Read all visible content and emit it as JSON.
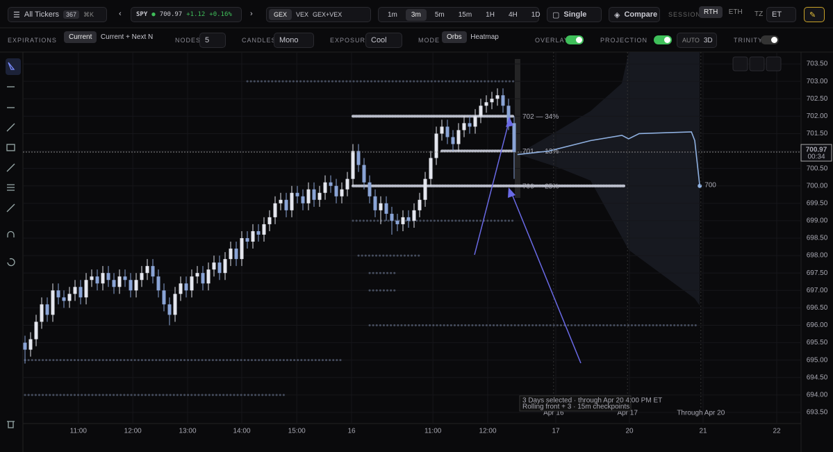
{
  "toolbar": {
    "tickers": "All Tickers",
    "ticker_count": "367",
    "shortcut": "⌘K",
    "symbol": "SPY",
    "price": "700.97",
    "change": "+1.12",
    "change_pct": "+0.16%",
    "modes": [
      "GEX",
      "VEX",
      "GEX+VEX"
    ],
    "intervals": [
      "1m",
      "3m",
      "5m",
      "15m",
      "1H",
      "4H",
      "1D"
    ],
    "layout": "Single",
    "compare": "Compare",
    "session_label": "SESSION",
    "sessions": [
      "RTH",
      "ETH"
    ],
    "tz_label": "TZ",
    "tz": "ET"
  },
  "options": {
    "expirations_label": "EXPIRATIONS",
    "expirations": [
      "Current",
      "Current + Next N"
    ],
    "nodes_label": "NODES",
    "nodes": "5",
    "candles_label": "CANDLES",
    "candles": "Mono",
    "exposure_label": "EXPOSURE",
    "exposure": "Cool",
    "mode_label": "MODE",
    "modes": [
      "Orbs",
      "Heatmap"
    ],
    "overlay_label": "OVERLAY",
    "projection_label": "PROJECTION",
    "auto_label": "AUTO",
    "auto": "3D",
    "trinity_label": "TRINITY"
  },
  "chart_data": {
    "type": "candlestick",
    "up_color": "#e4e6ee",
    "down_color": "#8aa4d6",
    "grid": true,
    "xlim": [
      -0.375,
      139.625
    ],
    "ylim": [
      693.18,
      703.84
    ],
    "xticks": [
      {
        "value": 9.6,
        "label": "11:00"
      },
      {
        "value": 19.4,
        "label": "12:00"
      },
      {
        "value": 29.25,
        "label": "13:00"
      },
      {
        "value": 39,
        "label": "14:00"
      },
      {
        "value": 48.9,
        "label": "15:00"
      },
      {
        "value": 58.75,
        "label": "16"
      },
      {
        "value": 73.4,
        "label": "11:00"
      },
      {
        "value": 83.25,
        "label": "12:00"
      },
      {
        "value": 95.5,
        "label": "17"
      },
      {
        "value": 108.75,
        "label": "20"
      },
      {
        "value": 122,
        "label": "21"
      },
      {
        "value": 135.25,
        "label": "22"
      }
    ],
    "yticks": [
      {
        "value": 693.5,
        "label": "693.50"
      },
      {
        "value": 694,
        "label": "694.00"
      },
      {
        "value": 694.5,
        "label": "694.50"
      },
      {
        "value": 695,
        "label": "695.00"
      },
      {
        "value": 695.5,
        "label": "695.50"
      },
      {
        "value": 696,
        "label": "696.00"
      },
      {
        "value": 696.5,
        "label": "696.50"
      },
      {
        "value": 697,
        "label": "697.00"
      },
      {
        "value": 697.5,
        "label": "697.50"
      },
      {
        "value": 698,
        "label": "698.00"
      },
      {
        "value": 698.5,
        "label": "698.50"
      },
      {
        "value": 699,
        "label": "699.00"
      },
      {
        "value": 699.5,
        "label": "699.50"
      },
      {
        "value": 700,
        "label": "700.00"
      },
      {
        "value": 700.5,
        "label": "700.50"
      },
      {
        "value": 701,
        "label": "701.00"
      },
      {
        "value": 701.5,
        "label": "701.50"
      },
      {
        "value": 702,
        "label": "702.00"
      },
      {
        "value": 702.5,
        "label": "702.50"
      },
      {
        "value": 703,
        "label": "703.00"
      },
      {
        "value": 703.5,
        "label": "703.50"
      }
    ],
    "current_price": {
      "value": 700.97,
      "label": "700.97"
    },
    "countdown": "00:34",
    "candles": [
      [
        695.5,
        695.7,
        694.9,
        695.3
      ],
      [
        695.3,
        695.8,
        695.1,
        695.6
      ],
      [
        695.6,
        696.3,
        695.4,
        696.1
      ],
      [
        696.1,
        696.8,
        695.9,
        696.6
      ],
      [
        696.6,
        696.8,
        696.1,
        696.3
      ],
      [
        696.3,
        697.2,
        696.1,
        697.0
      ],
      [
        697.0,
        697.2,
        696.6,
        696.8
      ],
      [
        696.8,
        697.0,
        696.5,
        696.7
      ],
      [
        696.7,
        697.1,
        696.5,
        696.9
      ],
      [
        696.9,
        697.3,
        696.7,
        697.1
      ],
      [
        697.1,
        697.3,
        696.6,
        696.8
      ],
      [
        696.8,
        697.5,
        696.6,
        697.3
      ],
      [
        697.3,
        697.6,
        697.1,
        697.4
      ],
      [
        697.4,
        697.6,
        697.0,
        697.2
      ],
      [
        697.2,
        697.7,
        697.0,
        697.5
      ],
      [
        697.5,
        697.7,
        697.1,
        697.3
      ],
      [
        697.3,
        697.5,
        696.9,
        697.1
      ],
      [
        697.1,
        697.6,
        696.9,
        697.4
      ],
      [
        697.4,
        697.6,
        697.1,
        697.3
      ],
      [
        697.3,
        697.5,
        696.8,
        697.0
      ],
      [
        697.0,
        697.5,
        696.8,
        697.3
      ],
      [
        697.3,
        697.7,
        697.1,
        697.5
      ],
      [
        697.5,
        697.9,
        697.3,
        697.7
      ],
      [
        697.7,
        697.9,
        697.2,
        697.4
      ],
      [
        697.4,
        697.6,
        696.8,
        697.0
      ],
      [
        697.0,
        697.2,
        696.4,
        696.6
      ],
      [
        696.6,
        696.8,
        696.0,
        696.3
      ],
      [
        696.3,
        697.1,
        696.1,
        696.9
      ],
      [
        696.9,
        697.4,
        696.7,
        697.2
      ],
      [
        697.2,
        697.4,
        696.8,
        697.0
      ],
      [
        697.0,
        697.6,
        696.8,
        697.4
      ],
      [
        697.4,
        697.7,
        697.2,
        697.5
      ],
      [
        697.5,
        697.7,
        697.0,
        697.2
      ],
      [
        697.2,
        697.8,
        697.0,
        697.6
      ],
      [
        697.6,
        698.0,
        697.4,
        697.8
      ],
      [
        697.8,
        698.0,
        697.3,
        697.5
      ],
      [
        697.5,
        698.1,
        697.3,
        697.9
      ],
      [
        697.9,
        698.4,
        697.7,
        698.2
      ],
      [
        698.2,
        698.4,
        697.7,
        697.9
      ],
      [
        697.9,
        698.7,
        697.7,
        698.5
      ],
      [
        698.5,
        698.7,
        698.2,
        698.4
      ],
      [
        698.4,
        698.9,
        698.2,
        698.7
      ],
      [
        698.7,
        698.9,
        698.4,
        698.6
      ],
      [
        698.6,
        699.1,
        698.4,
        698.9
      ],
      [
        698.9,
        699.3,
        698.7,
        699.1
      ],
      [
        699.1,
        699.7,
        698.9,
        699.5
      ],
      [
        699.5,
        699.8,
        699.3,
        699.6
      ],
      [
        699.6,
        699.8,
        699.1,
        699.3
      ],
      [
        699.3,
        700.0,
        699.1,
        699.8
      ],
      [
        699.8,
        700.0,
        699.5,
        699.7
      ],
      [
        699.7,
        699.9,
        699.3,
        699.5
      ],
      [
        699.5,
        700.1,
        699.3,
        699.9
      ],
      [
        699.9,
        700.1,
        699.4,
        699.6
      ],
      [
        699.6,
        700.0,
        699.4,
        699.8
      ],
      [
        699.8,
        700.3,
        699.6,
        700.1
      ],
      [
        700.1,
        700.3,
        699.8,
        700.0
      ],
      [
        700.0,
        700.2,
        699.5,
        699.7
      ],
      [
        699.7,
        700.1,
        699.5,
        699.9
      ],
      [
        699.9,
        700.4,
        699.7,
        700.2
      ],
      [
        700.2,
        701.2,
        700.0,
        701.0
      ],
      [
        701.0,
        701.2,
        700.4,
        700.6
      ],
      [
        700.6,
        700.8,
        699.9,
        700.1
      ],
      [
        700.1,
        700.3,
        699.5,
        699.7
      ],
      [
        699.7,
        699.9,
        699.1,
        699.3
      ],
      [
        699.3,
        699.7,
        698.9,
        699.5
      ],
      [
        699.5,
        699.7,
        699.0,
        699.2
      ],
      [
        699.2,
        699.4,
        698.6,
        699.0
      ],
      [
        699.0,
        699.2,
        698.7,
        698.9
      ],
      [
        698.9,
        699.3,
        698.7,
        699.1
      ],
      [
        699.1,
        699.3,
        698.8,
        699.0
      ],
      [
        699.0,
        699.5,
        698.8,
        699.3
      ],
      [
        699.3,
        699.8,
        699.1,
        699.6
      ],
      [
        699.6,
        700.4,
        699.4,
        700.2
      ],
      [
        700.2,
        701.0,
        700.0,
        700.8
      ],
      [
        700.8,
        701.7,
        700.6,
        701.5
      ],
      [
        701.5,
        701.9,
        701.3,
        701.7
      ],
      [
        701.7,
        701.9,
        701.2,
        701.4
      ],
      [
        701.4,
        701.6,
        701.0,
        701.2
      ],
      [
        701.2,
        701.8,
        701.0,
        701.6
      ],
      [
        701.6,
        702.0,
        701.4,
        701.8
      ],
      [
        701.8,
        702.0,
        701.5,
        701.7
      ],
      [
        701.7,
        702.2,
        701.5,
        702.0
      ],
      [
        702.0,
        702.5,
        701.8,
        702.3
      ],
      [
        702.3,
        702.6,
        702.1,
        702.4
      ],
      [
        702.4,
        702.7,
        702.2,
        702.5
      ],
      [
        702.5,
        702.8,
        702.3,
        702.6
      ],
      [
        702.6,
        702.8,
        702.1,
        702.3
      ],
      [
        702.3,
        702.5,
        701.6,
        701.8
      ],
      [
        701.8,
        702.0,
        700.2,
        700.97
      ]
    ],
    "orbs": [
      {
        "level": 703,
        "start": 40,
        "end": 88
      },
      {
        "level": 702,
        "start": 59,
        "end": 88
      },
      {
        "level": 701,
        "start": 75,
        "end": 88
      },
      {
        "level": 700,
        "start": 59,
        "end": 108
      },
      {
        "level": 699,
        "start": 59,
        "end": 88
      },
      {
        "level": 698,
        "start": 60,
        "end": 71
      },
      {
        "level": 697.5,
        "start": 62,
        "end": 67
      },
      {
        "level": 697,
        "start": 62,
        "end": 67
      },
      {
        "level": 696,
        "start": 62,
        "end": 121
      },
      {
        "level": 695,
        "start": 0,
        "end": 57
      },
      {
        "level": 694,
        "start": 0,
        "end": 47
      }
    ],
    "level_labels": [
      {
        "level": 702,
        "text": "702 — 34%"
      },
      {
        "level": 701,
        "text": "701 — 13%"
      },
      {
        "level": 700,
        "text": "700 — 25%"
      }
    ],
    "projection": {
      "x": [
        88.6,
        94.25,
        101.75,
        107.4,
        108.6,
        110.5,
        119.9,
        120.5,
        121.4
      ],
      "y": [
        700.9,
        701.0,
        701.3,
        701.45,
        701.35,
        701.5,
        701.55,
        701.3,
        700.0
      ],
      "target": {
        "value": 700,
        "label": "700"
      }
    },
    "checkpoints": [
      {
        "x": 95.1,
        "label": "Apr 16"
      },
      {
        "x": 108.4,
        "label": "Apr 17"
      },
      {
        "x": 121.6,
        "label": "Through Apr 20"
      }
    ],
    "note": [
      "3 Days selected · through Apr 20 4:00 PM ET",
      "Rolling front + 3 · 15m checkpoints"
    ]
  }
}
